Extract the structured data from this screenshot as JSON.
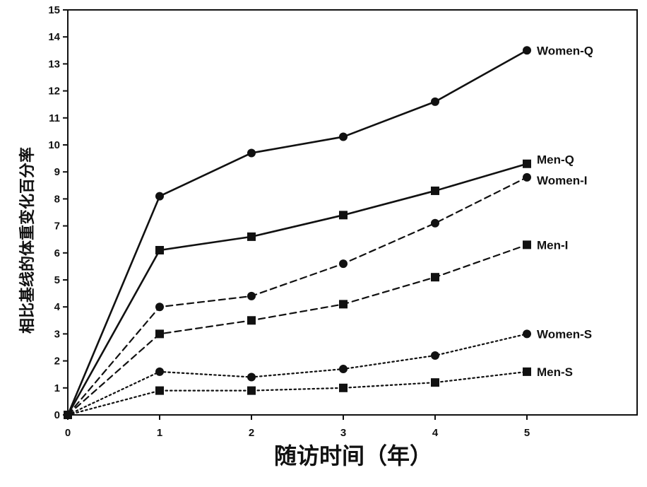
{
  "chart_data": {
    "type": "line",
    "title": "",
    "xlabel": "随访时间（年）",
    "ylabel": "相比基线的体重变化百分率",
    "x": [
      0,
      1,
      2,
      3,
      4,
      5
    ],
    "xlim": [
      0,
      6.2
    ],
    "ylim": [
      0,
      15
    ],
    "xticks": [
      "0",
      "1",
      "2",
      "3",
      "4",
      "5"
    ],
    "yticks": [
      "0",
      "1",
      "2",
      "3",
      "4",
      "5",
      "6",
      "7",
      "8",
      "9",
      "10",
      "11",
      "12",
      "13",
      "14",
      "15"
    ],
    "grid": false,
    "series": [
      {
        "name": "Women-Q",
        "marker": "circle",
        "line": "solid",
        "values": [
          0,
          8.1,
          9.7,
          10.3,
          11.6,
          13.5
        ]
      },
      {
        "name": "Men-Q",
        "marker": "square",
        "line": "solid",
        "values": [
          0,
          6.1,
          6.6,
          7.4,
          8.3,
          9.3
        ]
      },
      {
        "name": "Women-I",
        "marker": "circle",
        "line": "dashed",
        "values": [
          0,
          4.0,
          4.4,
          5.6,
          7.1,
          8.8
        ]
      },
      {
        "name": "Men-I",
        "marker": "square",
        "line": "dashed",
        "values": [
          0,
          3.0,
          3.5,
          4.1,
          5.1,
          6.3
        ]
      },
      {
        "name": "Women-S",
        "marker": "circle",
        "line": "dotted",
        "values": [
          0,
          1.6,
          1.4,
          1.7,
          2.2,
          3.0
        ]
      },
      {
        "name": "Men-S",
        "marker": "square",
        "line": "dotted",
        "values": [
          0,
          0.9,
          0.9,
          1.0,
          1.2,
          1.6
        ]
      }
    ]
  }
}
